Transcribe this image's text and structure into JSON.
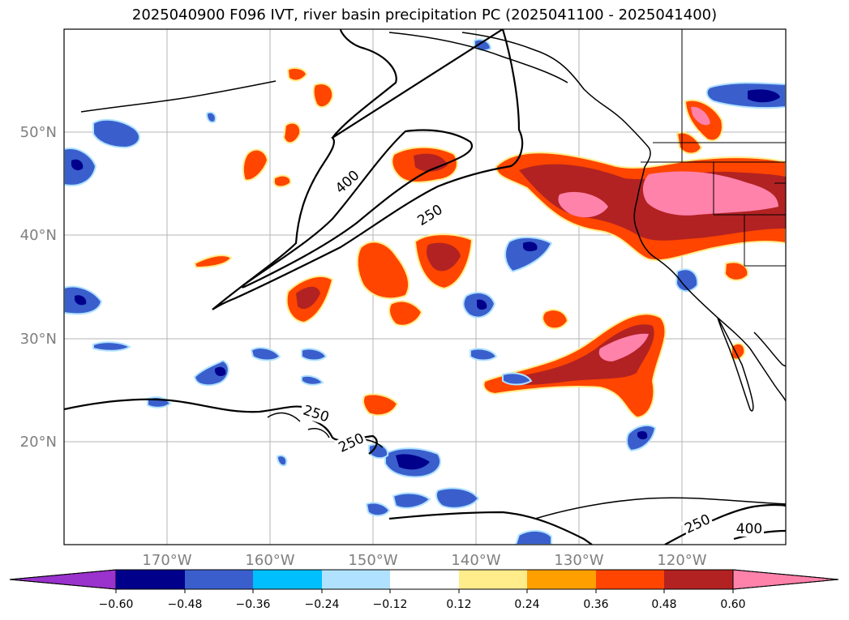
{
  "title": "2025040900 F096 IVT, river basin precipitation PC (2025041100 - 2025041400)",
  "map": {
    "lat_labels": [
      "50°N",
      "40°N",
      "30°N",
      "20°N"
    ],
    "lon_labels": [
      "170°W",
      "160°W",
      "150°W",
      "140°W",
      "130°W",
      "120°W"
    ],
    "contour_labels": [
      "400",
      "250",
      "250",
      "250",
      "250",
      "400"
    ],
    "colors": {
      "blue_dark": "#00008b",
      "blue_mid": "#3a5fcd",
      "blue_light": "#00bfff",
      "blue_pale": "#b0e2ff",
      "yellow": "#ffec8b",
      "orange": "#ff9f00",
      "red_orange": "#ff4500",
      "dark_red": "#b22222",
      "pink": "#ff82ab"
    }
  },
  "colorbar": {
    "ticks": [
      "−0.60",
      "−0.48",
      "−0.36",
      "−0.24",
      "−0.12",
      "0.12",
      "0.24",
      "0.36",
      "0.48",
      "0.60"
    ],
    "colors": [
      "#9a32cd",
      "#00008b",
      "#3a5fcd",
      "#00bfff",
      "#b0e2ff",
      "#ffffff",
      "#ffec8b",
      "#ff9f00",
      "#ff4500",
      "#b22222",
      "#ff82ab"
    ]
  }
}
